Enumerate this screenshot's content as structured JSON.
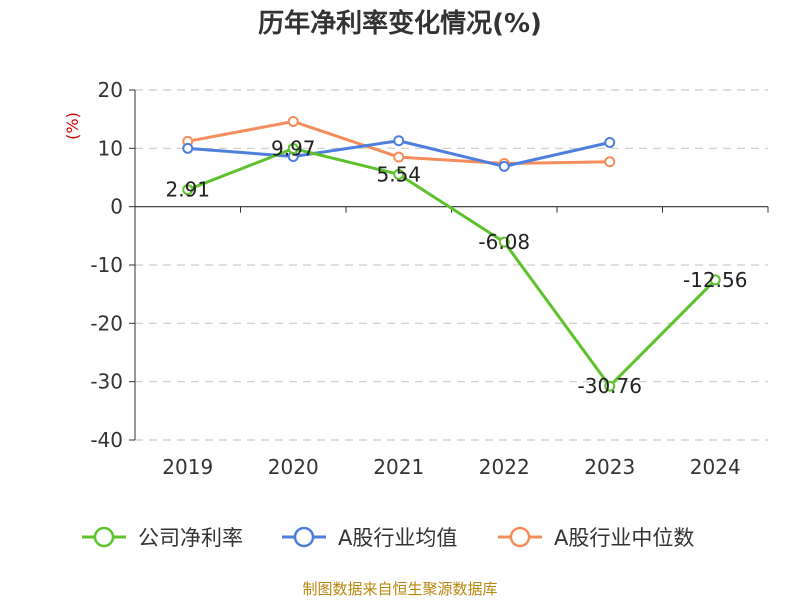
{
  "chart_data": {
    "type": "line",
    "title": "历年净利率变化情况(%)",
    "ylabel": "(%)",
    "categories": [
      "2019",
      "2020",
      "2021",
      "2022",
      "2023",
      "2024"
    ],
    "ylim": [
      -40,
      20
    ],
    "yticks": [
      20,
      10,
      0,
      -10,
      -20,
      -30,
      -40
    ],
    "grid": true,
    "legend_position": "bottom",
    "series": [
      {
        "name": "公司净利率",
        "color": "#5dc22b",
        "values": [
          2.91,
          9.97,
          5.54,
          -6.08,
          -30.76,
          -12.56
        ],
        "labels": [
          "2.91",
          "9.97",
          "5.54",
          "-6.08",
          "-30.76",
          "-12.56"
        ]
      },
      {
        "name": "A股行业均值",
        "color": "#4f7fdd",
        "values": [
          10.0,
          8.6,
          11.3,
          6.9,
          11.0,
          null
        ]
      },
      {
        "name": "A股行业中位数",
        "color": "#f48d5c",
        "values": [
          11.2,
          14.6,
          8.5,
          7.4,
          7.7,
          null
        ]
      }
    ],
    "source": "制图数据来自恒生聚源数据库"
  }
}
